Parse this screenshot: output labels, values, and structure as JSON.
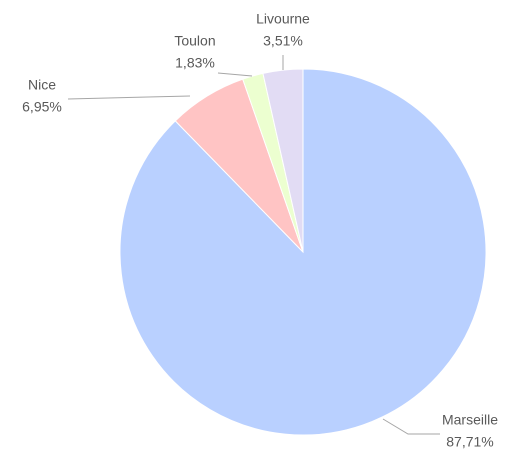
{
  "chart_data": {
    "type": "pie",
    "categories": [
      "Marseille",
      "Nice",
      "Toulon",
      "Livourne"
    ],
    "values": [
      87.71,
      6.95,
      1.83,
      3.51
    ],
    "value_labels": [
      "87,71%",
      "6,95%",
      "1,83%",
      "3,51%"
    ],
    "colors": [
      "#b9d0ff",
      "#ffc4c4",
      "#ecffd0",
      "#e2dcf4"
    ]
  }
}
